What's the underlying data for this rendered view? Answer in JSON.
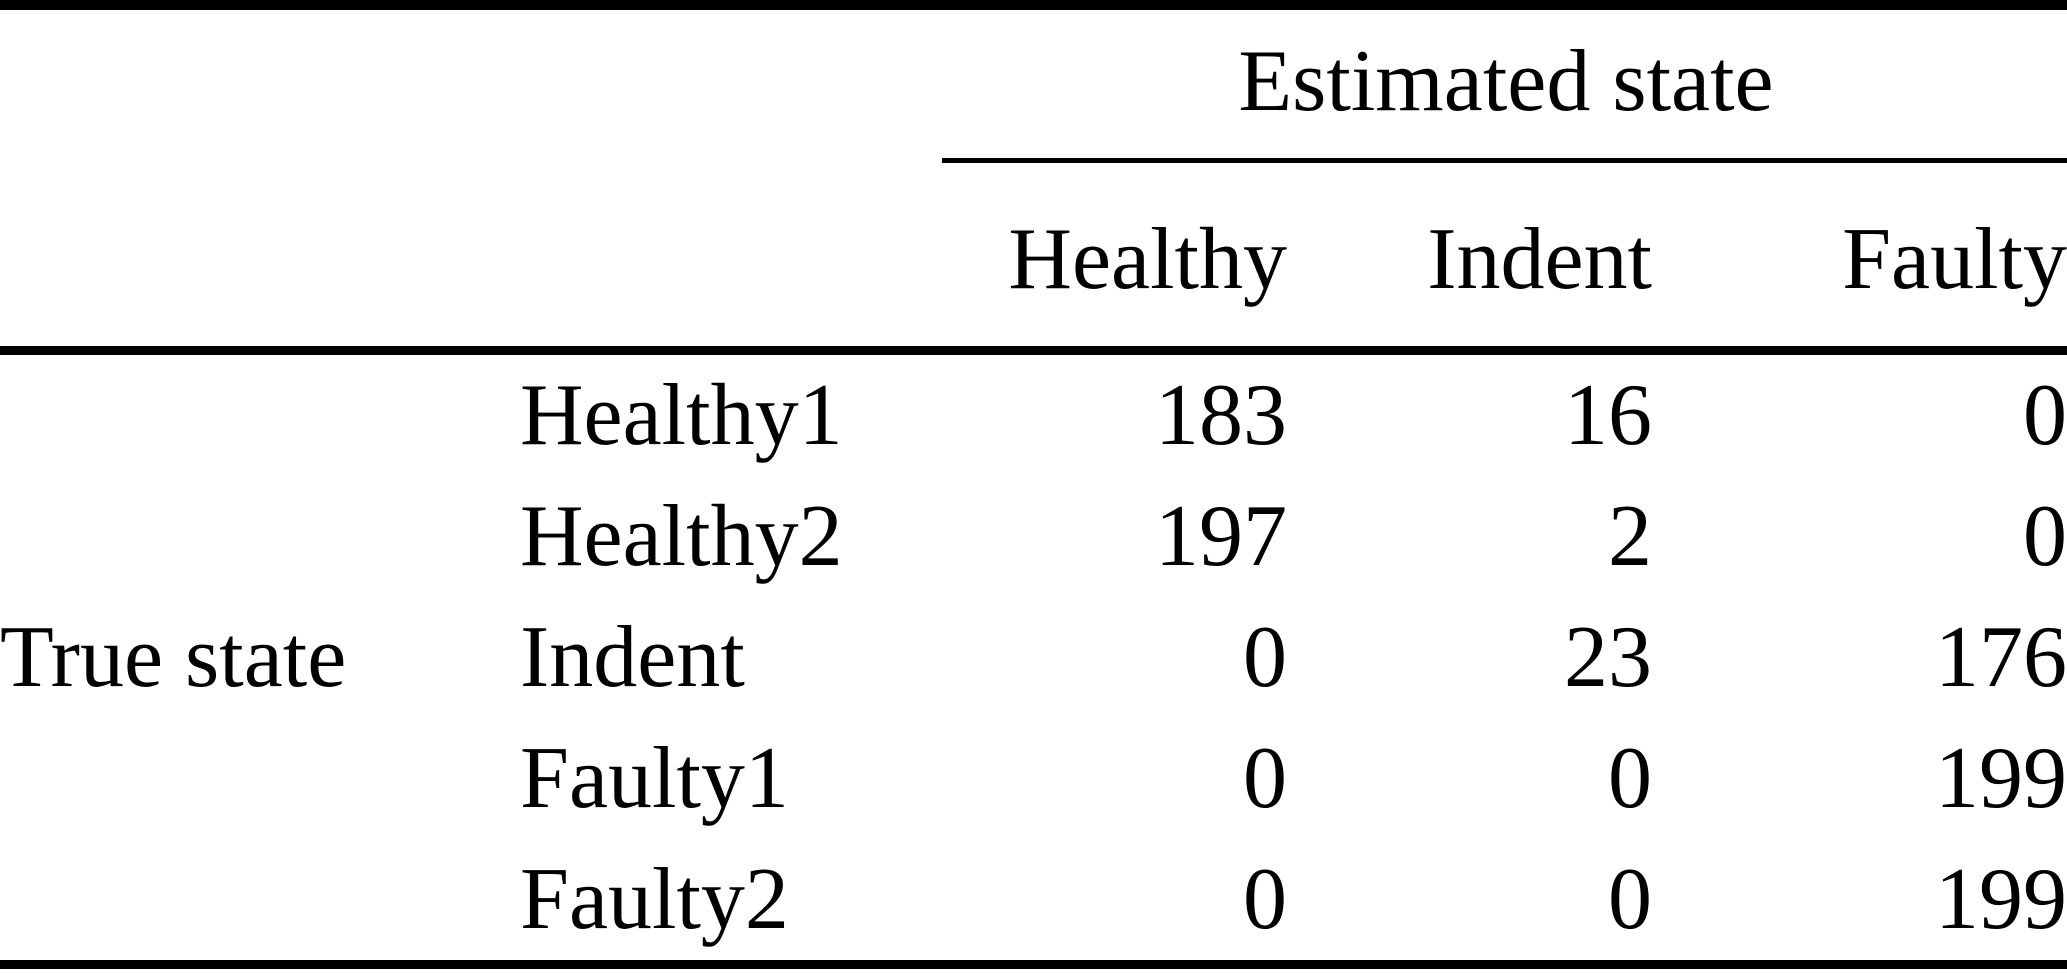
{
  "chart_data": {
    "type": "table",
    "description": "Confusion matrix of true state vs estimated state",
    "column_group_header": "Estimated state",
    "row_group_header": "True state",
    "columns": [
      "Healthy",
      "Indent",
      "Faulty"
    ],
    "rows": [
      {
        "label": "Healthy1",
        "values": [
          "183",
          "16",
          "0"
        ]
      },
      {
        "label": "Healthy2",
        "values": [
          "197",
          "2",
          "0"
        ]
      },
      {
        "label": "Indent",
        "values": [
          "0",
          "23",
          "176"
        ]
      },
      {
        "label": "Faulty1",
        "values": [
          "0",
          "0",
          "199"
        ]
      },
      {
        "label": "Faulty2",
        "values": [
          "0",
          "0",
          "199"
        ]
      }
    ],
    "colors": {
      "text": "#000000",
      "background": "#ffffff",
      "rules": "#000000"
    }
  }
}
